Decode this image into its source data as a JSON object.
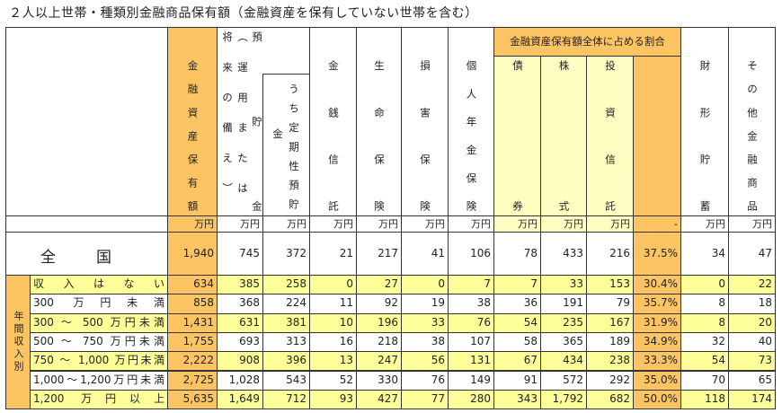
{
  "title": "２人以上世帯・種類別金融商品保有額（金融資産を保有していない世帯を含む）",
  "headers": {
    "total_assets": "金融資産保有額",
    "deposits": [
      "預貯金",
      "（運用または",
      "将来の備え）"
    ],
    "time_deposits": [
      "うち定期性預貯",
      "金"
    ],
    "money_trust": "金銭信託",
    "life_insurance": "生命保険",
    "nonlife_insurance": "損害保険",
    "pension_insurance": "個人年金保険",
    "share_group": "金融資産保有額全体に占める割合",
    "bonds": "債券",
    "stocks": "株式",
    "investment_trust": "投資信託",
    "savings_plan": "財形貯蓄",
    "other": "その他金融商品"
  },
  "units": [
    "万円",
    "万円",
    "万円",
    "万円",
    "万円",
    "万円",
    "万円",
    "万円",
    "万円",
    "万円",
    "-",
    "万円",
    "万円"
  ],
  "national": {
    "label": [
      "全",
      "国"
    ],
    "values": [
      "1,940",
      "745",
      "372",
      "21",
      "217",
      "41",
      "106",
      "78",
      "433",
      "216",
      "37.5%",
      "34",
      "47"
    ]
  },
  "group_label": "年間収入別",
  "rows": [
    {
      "label": "収入はない",
      "values": [
        "634",
        "385",
        "258",
        "0",
        "27",
        "0",
        "7",
        "7",
        "33",
        "153",
        "30.4%",
        "0",
        "22"
      ]
    },
    {
      "label": "300 万円未満",
      "values": [
        "858",
        "368",
        "224",
        "11",
        "92",
        "19",
        "38",
        "36",
        "191",
        "79",
        "35.7%",
        "8",
        "18"
      ]
    },
    {
      "label": "300 ～ 500 万円未満",
      "values": [
        "1,431",
        "631",
        "381",
        "10",
        "196",
        "33",
        "76",
        "54",
        "235",
        "167",
        "31.9%",
        "8",
        "20"
      ]
    },
    {
      "label": "500 ～ 750 万円未満",
      "values": [
        "1,755",
        "693",
        "313",
        "16",
        "218",
        "38",
        "107",
        "58",
        "365",
        "189",
        "34.9%",
        "32",
        "40"
      ]
    },
    {
      "label": "750 ～ 1,000 万円未満",
      "values": [
        "2,222",
        "908",
        "396",
        "13",
        "247",
        "56",
        "131",
        "67",
        "434",
        "238",
        "33.3%",
        "54",
        "73"
      ]
    },
    {
      "label": "1,000～1,200万円未満",
      "values": [
        "2,725",
        "1,028",
        "543",
        "52",
        "330",
        "76",
        "149",
        "91",
        "572",
        "292",
        "35.0%",
        "70",
        "65"
      ]
    },
    {
      "label": "1,200 万円以上",
      "values": [
        "5,635",
        "1,649",
        "712",
        "93",
        "427",
        "77",
        "280",
        "343",
        "1,792",
        "682",
        "50.0%",
        "118",
        "174"
      ]
    }
  ],
  "colors": {
    "orange": "#fdc463",
    "yellow": "#ffff99",
    "light_yellow": "#ffffc4"
  }
}
